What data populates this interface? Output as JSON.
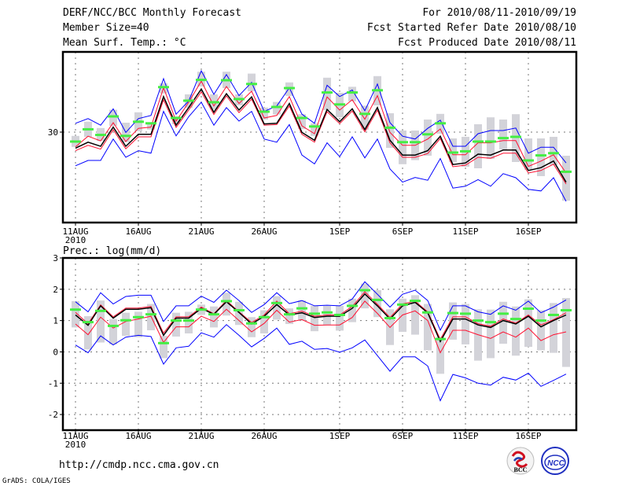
{
  "header": {
    "title": "DERF/NCC/BCC Monthly Forecast",
    "member_size": "Member Size=40",
    "variable_top": "Mean Surf. Temp.: °C",
    "period": "For 2010/08/11-2010/09/19",
    "start_date": "Fcst Started Refer Date 2010/08/10",
    "produced_date": "Fcst Produced Date 2010/08/11"
  },
  "footer": {
    "url": "http://cmdp.ncc.cma.gov.cn",
    "grads": "GrADS: COLA/IGES",
    "logo_bcc": "BCC",
    "logo_ncc": "NCC"
  },
  "colors": {
    "mean": "#000000",
    "ci": "#ff1030",
    "extreme": "#0000ff",
    "median": "#44ee44",
    "box": "#d3d3d9"
  },
  "chart_data": [
    {
      "type": "line",
      "title": "Mean Surf. Temp.: °C",
      "x_start": "2010-08-11",
      "days": 40,
      "xticks": [
        {
          "day": 0,
          "label": "11AUG"
        },
        {
          "day": 5,
          "label": "16AUG"
        },
        {
          "day": 10,
          "label": "21AUG"
        },
        {
          "day": 15,
          "label": "26AUG"
        },
        {
          "day": 21,
          "label": "1SEP"
        },
        {
          "day": 26,
          "label": "6SEP"
        },
        {
          "day": 31,
          "label": "11SEP"
        },
        {
          "day": 36,
          "label": "16SEP"
        }
      ],
      "year_label": "2010",
      "yticks": [
        30
      ],
      "ylim": [
        27.125,
        32.55
      ],
      "grid": true,
      "series": {
        "mean": [
          29.49,
          29.68,
          29.55,
          30.16,
          29.55,
          29.93,
          29.93,
          31.13,
          30.22,
          30.78,
          31.37,
          30.63,
          31.22,
          30.7,
          31.12,
          30.26,
          30.28,
          30.91,
          29.99,
          29.74,
          30.72,
          30.33,
          30.74,
          30.08,
          30.78,
          29.74,
          29.27,
          29.27,
          29.41,
          29.87,
          28.97,
          29.02,
          29.3,
          29.27,
          29.43,
          29.43,
          28.78,
          28.87,
          29.08,
          28.41
        ],
        "ci_upper": [
          29.53,
          29.87,
          29.72,
          30.3,
          29.7,
          30.12,
          30.16,
          31.41,
          30.35,
          30.95,
          31.62,
          30.83,
          31.45,
          30.91,
          31.3,
          30.45,
          30.53,
          31.13,
          30.2,
          29.95,
          31.12,
          30.7,
          31.03,
          30.41,
          31.16,
          29.99,
          29.58,
          29.58,
          29.78,
          30.1,
          29.28,
          29.28,
          29.66,
          29.66,
          29.73,
          29.73,
          28.91,
          29.08,
          29.28,
          28.7
        ],
        "ci_lower": [
          29.41,
          29.58,
          29.46,
          30.08,
          29.47,
          29.85,
          29.85,
          31.03,
          30.15,
          30.7,
          31.28,
          30.56,
          31.15,
          30.62,
          31.05,
          30.22,
          30.24,
          30.83,
          29.93,
          29.68,
          30.65,
          30.27,
          30.67,
          30.01,
          30.7,
          29.66,
          29.2,
          29.2,
          29.32,
          29.8,
          28.9,
          28.95,
          29.2,
          29.17,
          29.33,
          29.33,
          28.7,
          28.78,
          28.98,
          28.35
        ],
        "max": [
          30.28,
          30.43,
          30.22,
          30.74,
          29.99,
          30.43,
          30.53,
          31.7,
          30.57,
          30.99,
          31.95,
          31.2,
          31.83,
          31.16,
          31.58,
          30.66,
          30.83,
          31.41,
          30.57,
          30.28,
          31.49,
          31.13,
          31.34,
          30.68,
          31.53,
          30.3,
          29.87,
          29.78,
          30.12,
          30.38,
          29.55,
          29.55,
          29.95,
          30.05,
          30.05,
          30.13,
          29.33,
          29.52,
          29.52,
          29.02
        ],
        "min": [
          28.93,
          29.1,
          29.1,
          29.78,
          29.2,
          29.41,
          29.33,
          30.66,
          29.88,
          30.49,
          30.95,
          30.22,
          30.78,
          30.35,
          30.66,
          29.78,
          29.68,
          30.24,
          29.27,
          28.99,
          29.66,
          29.22,
          29.85,
          29.18,
          29.78,
          28.83,
          28.41,
          28.56,
          28.47,
          29.16,
          28.22,
          28.28,
          28.49,
          28.28,
          28.68,
          28.55,
          28.18,
          28.13,
          28.55,
          27.8
        ],
        "median": [
          29.7,
          30.09,
          29.91,
          30.5,
          29.88,
          30.33,
          30.28,
          31.43,
          30.45,
          31.0,
          31.66,
          30.95,
          31.65,
          31.05,
          31.53,
          30.65,
          30.8,
          31.4,
          30.45,
          30.18,
          31.26,
          30.88,
          31.26,
          30.58,
          31.33,
          30.14,
          29.68,
          29.68,
          29.93,
          30.28,
          29.35,
          29.39,
          29.7,
          29.7,
          29.81,
          29.85,
          29.1,
          29.26,
          29.33,
          28.74
        ],
        "box_high": [
          29.88,
          30.33,
          30.13,
          30.71,
          30.3,
          30.63,
          30.3,
          31.55,
          30.5,
          31.2,
          31.92,
          31.2,
          31.92,
          31.2,
          31.86,
          30.78,
          30.96,
          31.58,
          30.57,
          30.28,
          31.73,
          31.25,
          31.44,
          30.84,
          31.78,
          30.6,
          30.05,
          30.05,
          30.4,
          30.58,
          29.8,
          29.85,
          30.25,
          30.47,
          30.4,
          30.57,
          29.8,
          29.8,
          29.85,
          29.25
        ],
        "box_low": [
          29.53,
          29.85,
          29.72,
          30.2,
          29.68,
          30.03,
          30.08,
          31.23,
          30.25,
          30.77,
          31.45,
          30.72,
          31.4,
          30.85,
          31.3,
          30.4,
          30.56,
          31.15,
          30.1,
          29.88,
          30.7,
          30.47,
          30.98,
          30.08,
          30.85,
          29.5,
          28.98,
          29.11,
          29.25,
          29.95,
          29.05,
          28.9,
          28.85,
          29.15,
          29.45,
          29.05,
          28.8,
          28.6,
          28.95,
          27.82
        ]
      }
    },
    {
      "type": "line",
      "title": "Prec.: log(mm/d)",
      "x_start": "2010-08-11",
      "days": 40,
      "xticks": [
        {
          "day": 0,
          "label": "11AUG"
        },
        {
          "day": 5,
          "label": "16AUG"
        },
        {
          "day": 10,
          "label": "21AUG"
        },
        {
          "day": 15,
          "label": "26AUG"
        },
        {
          "day": 21,
          "label": "1SEP"
        },
        {
          "day": 26,
          "label": "6SEP"
        },
        {
          "day": 31,
          "label": "11SEP"
        },
        {
          "day": 36,
          "label": "16SEP"
        }
      ],
      "year_label": "2010",
      "yticks": [
        3,
        2,
        1,
        0,
        -1,
        -2
      ],
      "ylim": [
        -2.5,
        3
      ],
      "grid": true,
      "series": {
        "mean": [
          1.18,
          0.85,
          1.47,
          1.08,
          1.36,
          1.36,
          1.41,
          0.53,
          1.08,
          1.08,
          1.39,
          1.2,
          1.6,
          1.26,
          0.89,
          1.14,
          1.51,
          1.18,
          1.25,
          1.1,
          1.14,
          1.14,
          1.39,
          1.85,
          1.47,
          1.05,
          1.47,
          1.58,
          1.25,
          0.33,
          1.05,
          1.05,
          0.86,
          0.78,
          1.0,
          0.89,
          1.14,
          0.8,
          1.0,
          1.18
        ],
        "ci_upper": [
          1.26,
          0.9,
          1.5,
          1.12,
          1.4,
          1.4,
          1.45,
          0.6,
          1.12,
          1.12,
          1.43,
          1.22,
          1.64,
          1.28,
          0.94,
          1.18,
          1.62,
          1.22,
          1.3,
          1.14,
          1.18,
          1.18,
          1.45,
          1.92,
          1.52,
          1.1,
          1.53,
          1.62,
          1.28,
          0.4,
          1.12,
          1.12,
          0.9,
          0.82,
          1.05,
          0.92,
          1.18,
          0.86,
          1.03,
          1.25
        ],
        "ci_lower": [
          0.89,
          0.55,
          1.11,
          0.76,
          0.97,
          1.05,
          1.14,
          0.3,
          0.8,
          0.8,
          1.14,
          0.97,
          1.36,
          1.0,
          0.64,
          0.91,
          1.33,
          0.95,
          1.03,
          0.85,
          0.86,
          0.86,
          1.1,
          1.62,
          1.23,
          0.78,
          1.18,
          1.31,
          1.0,
          -0.03,
          0.69,
          0.69,
          0.55,
          0.43,
          0.64,
          0.47,
          0.76,
          0.36,
          0.55,
          0.64
        ],
        "max": [
          1.6,
          1.28,
          1.89,
          1.53,
          1.77,
          1.81,
          1.81,
          0.97,
          1.47,
          1.47,
          1.78,
          1.58,
          1.97,
          1.64,
          1.26,
          1.51,
          1.89,
          1.54,
          1.64,
          1.47,
          1.49,
          1.47,
          1.69,
          2.24,
          1.84,
          1.43,
          1.84,
          1.97,
          1.64,
          0.69,
          1.47,
          1.47,
          1.28,
          1.2,
          1.47,
          1.33,
          1.62,
          1.25,
          1.43,
          1.66
        ],
        "min": [
          0.22,
          -0.03,
          0.51,
          0.22,
          0.47,
          0.53,
          0.49,
          -0.39,
          0.13,
          0.18,
          0.61,
          0.47,
          0.87,
          0.53,
          0.16,
          0.43,
          0.76,
          0.24,
          0.34,
          0.08,
          0.11,
          -0.01,
          0.13,
          0.38,
          -0.12,
          -0.62,
          -0.16,
          -0.16,
          -0.45,
          -1.56,
          -0.72,
          -0.83,
          -1.0,
          -1.06,
          -0.81,
          -0.9,
          -0.68,
          -1.1,
          -0.91,
          -0.71
        ],
        "median": [
          1.35,
          0.95,
          1.31,
          0.83,
          1.01,
          1.11,
          1.2,
          0.28,
          1.0,
          1.0,
          1.35,
          1.2,
          1.62,
          1.33,
          0.91,
          1.11,
          1.56,
          1.2,
          1.39,
          1.22,
          1.26,
          1.18,
          1.47,
          1.97,
          1.66,
          1.08,
          1.51,
          1.63,
          1.26,
          0.41,
          1.24,
          1.22,
          1.0,
          0.95,
          1.22,
          1.05,
          1.38,
          1.0,
          1.18,
          1.33
        ],
        "box_high": [
          1.62,
          1.14,
          1.64,
          1.05,
          1.25,
          1.28,
          1.53,
          0.51,
          1.25,
          1.28,
          1.51,
          1.45,
          1.89,
          1.6,
          1.11,
          1.33,
          1.78,
          1.39,
          1.64,
          1.47,
          1.47,
          1.47,
          1.7,
          2.18,
          1.97,
          1.36,
          1.7,
          1.81,
          1.53,
          0.47,
          1.58,
          1.53,
          1.36,
          1.35,
          1.6,
          1.45,
          1.68,
          1.33,
          1.56,
          1.72
        ],
        "box_low": [
          0.78,
          0.08,
          0.3,
          0.24,
          0.51,
          0.47,
          0.69,
          -0.2,
          0.49,
          0.59,
          1.18,
          0.78,
          1.16,
          0.86,
          0.47,
          0.59,
          1.03,
          0.89,
          1.0,
          0.66,
          0.86,
          0.68,
          0.95,
          1.39,
          1.11,
          0.22,
          0.64,
          0.55,
          0.05,
          -0.7,
          0.39,
          0.24,
          -0.28,
          -0.2,
          0.26,
          -0.12,
          0.16,
          0.05,
          -0.03,
          -0.48
        ]
      }
    }
  ]
}
